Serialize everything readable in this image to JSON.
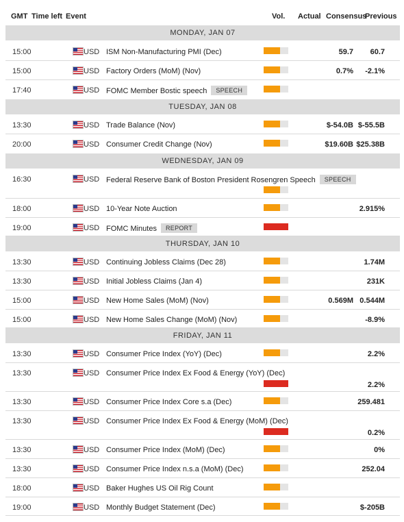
{
  "header": {
    "gmt": "GMT",
    "time_left": "Time left",
    "event": "Event",
    "vol": "Vol.",
    "actual": "Actual",
    "consensus": "Consensus",
    "previous": "Previous"
  },
  "colors": {
    "low_vol": "#f59b0b",
    "high_vol": "#dc2b20",
    "day_band": "#dcdcdc"
  },
  "days": [
    {
      "label": "MONDAY, JAN 07",
      "rows": [
        {
          "time": "15:00",
          "cur": "USD",
          "event": "ISM Non-Manufacturing PMI (Dec)",
          "vol": "medium",
          "consensus": "59.7",
          "previous": "60.7"
        },
        {
          "time": "15:00",
          "cur": "USD",
          "event": "Factory Orders (MoM) (Nov)",
          "vol": "medium",
          "consensus": "0.7%",
          "previous": "-2.1%"
        },
        {
          "time": "17:40",
          "cur": "USD",
          "event": "FOMC Member Bostic speech",
          "tag": "SPEECH",
          "vol": "medium",
          "consensus": "",
          "previous": ""
        }
      ]
    },
    {
      "label": "TUESDAY, JAN 08",
      "rows": [
        {
          "time": "13:30",
          "cur": "USD",
          "event": "Trade Balance (Nov)",
          "vol": "medium",
          "consensus": "$-54.0B",
          "previous": "$-55.5B"
        },
        {
          "time": "20:00",
          "cur": "USD",
          "event": "Consumer Credit Change (Nov)",
          "vol": "medium",
          "consensus": "$19.60B",
          "previous": "$25.38B"
        }
      ]
    },
    {
      "label": "WEDNESDAY, JAN 09",
      "rows": [
        {
          "time": "16:30",
          "cur": "USD",
          "event": "Federal Reserve Bank of Boston President Rosengren Speech",
          "tag": "SPEECH",
          "vol": "medium",
          "consensus": "",
          "previous": ""
        },
        {
          "time": "18:00",
          "cur": "USD",
          "event": "10-Year Note Auction",
          "vol": "medium",
          "consensus": "",
          "previous": "2.915%"
        },
        {
          "time": "19:00",
          "cur": "USD",
          "event": "FOMC Minutes",
          "tag": "REPORT",
          "vol": "high",
          "consensus": "",
          "previous": ""
        }
      ]
    },
    {
      "label": "THURSDAY, JAN 10",
      "rows": [
        {
          "time": "13:30",
          "cur": "USD",
          "event": "Continuing Jobless Claims (Dec 28)",
          "vol": "medium",
          "consensus": "",
          "previous": "1.74M"
        },
        {
          "time": "13:30",
          "cur": "USD",
          "event": "Initial Jobless Claims (Jan 4)",
          "vol": "medium",
          "consensus": "",
          "previous": "231K"
        },
        {
          "time": "15:00",
          "cur": "USD",
          "event": "New Home Sales (MoM) (Nov)",
          "vol": "medium",
          "consensus": "0.569M",
          "previous": "0.544M"
        },
        {
          "time": "15:00",
          "cur": "USD",
          "event": "New Home Sales Change (MoM) (Nov)",
          "vol": "medium",
          "consensus": "",
          "previous": "-8.9%"
        }
      ]
    },
    {
      "label": "FRIDAY, JAN 11",
      "rows": [
        {
          "time": "13:30",
          "cur": "USD",
          "event": "Consumer Price Index (YoY) (Dec)",
          "vol": "medium",
          "consensus": "",
          "previous": "2.2%"
        },
        {
          "time": "13:30",
          "cur": "USD",
          "event": "Consumer Price Index Ex Food & Energy (YoY) (Dec)",
          "vol": "high",
          "consensus": "",
          "previous": "2.2%"
        },
        {
          "time": "13:30",
          "cur": "USD",
          "event": "Consumer Price Index Core s.a (Dec)",
          "vol": "medium",
          "consensus": "",
          "previous": "259.481"
        },
        {
          "time": "13:30",
          "cur": "USD",
          "event": "Consumer Price Index Ex Food & Energy (MoM) (Dec)",
          "vol": "high",
          "consensus": "",
          "previous": "0.2%"
        },
        {
          "time": "13:30",
          "cur": "USD",
          "event": "Consumer Price Index (MoM) (Dec)",
          "vol": "medium",
          "consensus": "",
          "previous": "0%"
        },
        {
          "time": "13:30",
          "cur": "USD",
          "event": "Consumer Price Index n.s.a (MoM) (Dec)",
          "vol": "medium",
          "consensus": "",
          "previous": "252.04"
        },
        {
          "time": "18:00",
          "cur": "USD",
          "event": "Baker Hughes US Oil Rig Count",
          "vol": "medium",
          "consensus": "",
          "previous": ""
        },
        {
          "time": "19:00",
          "cur": "USD",
          "event": "Monthly Budget Statement (Dec)",
          "vol": "medium",
          "consensus": "",
          "previous": "$-205B"
        }
      ]
    }
  ]
}
